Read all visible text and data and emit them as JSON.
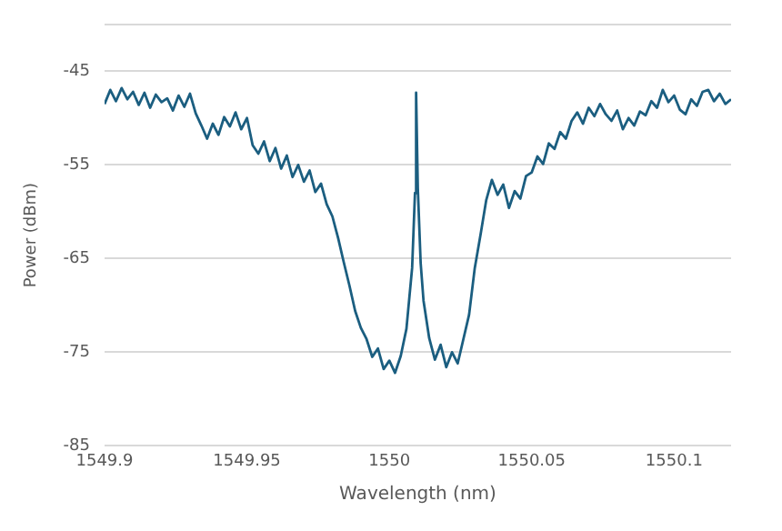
{
  "chart_data": {
    "type": "line",
    "xlabel": "Wavelength (nm)",
    "ylabel": "Power (dBm)",
    "xlim": [
      1549.9,
      1550.12
    ],
    "xticks": [
      1549.9,
      1549.95,
      1550,
      1550.05,
      1550.1
    ],
    "ylim": [
      -85,
      -40
    ],
    "yticks": [
      {
        "value": -40,
        "label": null
      },
      -45,
      -55,
      -65,
      -75,
      -85
    ],
    "grid": "y",
    "legend": false,
    "marker": "none",
    "line_style": "solid",
    "series": [
      {
        "color": "#1b5e80",
        "x": [
          1549.9,
          1549.902,
          1549.904,
          1549.906,
          1549.908,
          1549.91,
          1549.912,
          1549.914,
          1549.916,
          1549.918,
          1549.92,
          1549.922,
          1549.924,
          1549.926,
          1549.928,
          1549.93,
          1549.932,
          1549.934,
          1549.936,
          1549.938,
          1549.94,
          1549.942,
          1549.944,
          1549.946,
          1549.948,
          1549.95,
          1549.952,
          1549.954,
          1549.956,
          1549.958,
          1549.96,
          1549.962,
          1549.964,
          1549.966,
          1549.968,
          1549.97,
          1549.972,
          1549.974,
          1549.976,
          1549.978,
          1549.98,
          1549.982,
          1549.984,
          1549.986,
          1549.988,
          1549.99,
          1549.992,
          1549.994,
          1549.996,
          1549.998,
          1550,
          1550.002,
          1550.004,
          1550.006,
          1550.008,
          1550.009,
          1550.0094,
          1550.01,
          1550.011,
          1550.012,
          1550.014,
          1550.016,
          1550.018,
          1550.02,
          1550.022,
          1550.024,
          1550.026,
          1550.028,
          1550.03,
          1550.032,
          1550.034,
          1550.036,
          1550.038,
          1550.04,
          1550.042,
          1550.044,
          1550.046,
          1550.048,
          1550.05,
          1550.052,
          1550.054,
          1550.056,
          1550.058,
          1550.06,
          1550.062,
          1550.064,
          1550.066,
          1550.068,
          1550.07,
          1550.072,
          1550.074,
          1550.076,
          1550.078,
          1550.08,
          1550.082,
          1550.084,
          1550.086,
          1550.088,
          1550.09,
          1550.092,
          1550.094,
          1550.096,
          1550.098,
          1550.1,
          1550.102,
          1550.104,
          1550.106,
          1550.108,
          1550.11,
          1550.112,
          1550.114,
          1550.116,
          1550.118,
          1550.12
        ],
        "values": [
          -48.5,
          -47.0,
          -48.2,
          -46.8,
          -48.0,
          -47.2,
          -48.6,
          -47.3,
          -48.9,
          -47.5,
          -48.3,
          -47.9,
          -49.2,
          -47.6,
          -48.8,
          -47.4,
          -49.5,
          -50.8,
          -52.2,
          -50.6,
          -51.8,
          -49.9,
          -50.9,
          -49.4,
          -51.2,
          -50.0,
          -52.9,
          -53.8,
          -52.5,
          -54.6,
          -53.2,
          -55.4,
          -54.0,
          -56.3,
          -55.0,
          -56.8,
          -55.6,
          -57.9,
          -57.0,
          -59.2,
          -60.5,
          -62.8,
          -65.4,
          -67.9,
          -70.6,
          -72.4,
          -73.6,
          -75.5,
          -74.6,
          -76.8,
          -75.9,
          -77.2,
          -75.4,
          -72.5,
          -66.0,
          -58.0,
          -47.3,
          -57.5,
          -65.5,
          -69.5,
          -73.5,
          -75.8,
          -74.2,
          -76.6,
          -75.0,
          -76.2,
          -73.6,
          -71.0,
          -66.0,
          -62.5,
          -58.8,
          -56.6,
          -58.2,
          -57.1,
          -59.6,
          -57.8,
          -58.6,
          -56.2,
          -55.8,
          -54.1,
          -54.9,
          -52.7,
          -53.3,
          -51.5,
          -52.2,
          -50.3,
          -49.4,
          -50.6,
          -48.9,
          -49.8,
          -48.5,
          -49.6,
          -50.3,
          -49.2,
          -51.2,
          -50.0,
          -50.8,
          -49.3,
          -49.7,
          -48.2,
          -48.9,
          -47.0,
          -48.3,
          -47.6,
          -49.1,
          -49.6,
          -48.0,
          -48.7,
          -47.2,
          -47.0,
          -48.2,
          -47.4,
          -48.5,
          -48.0
        ]
      }
    ]
  }
}
